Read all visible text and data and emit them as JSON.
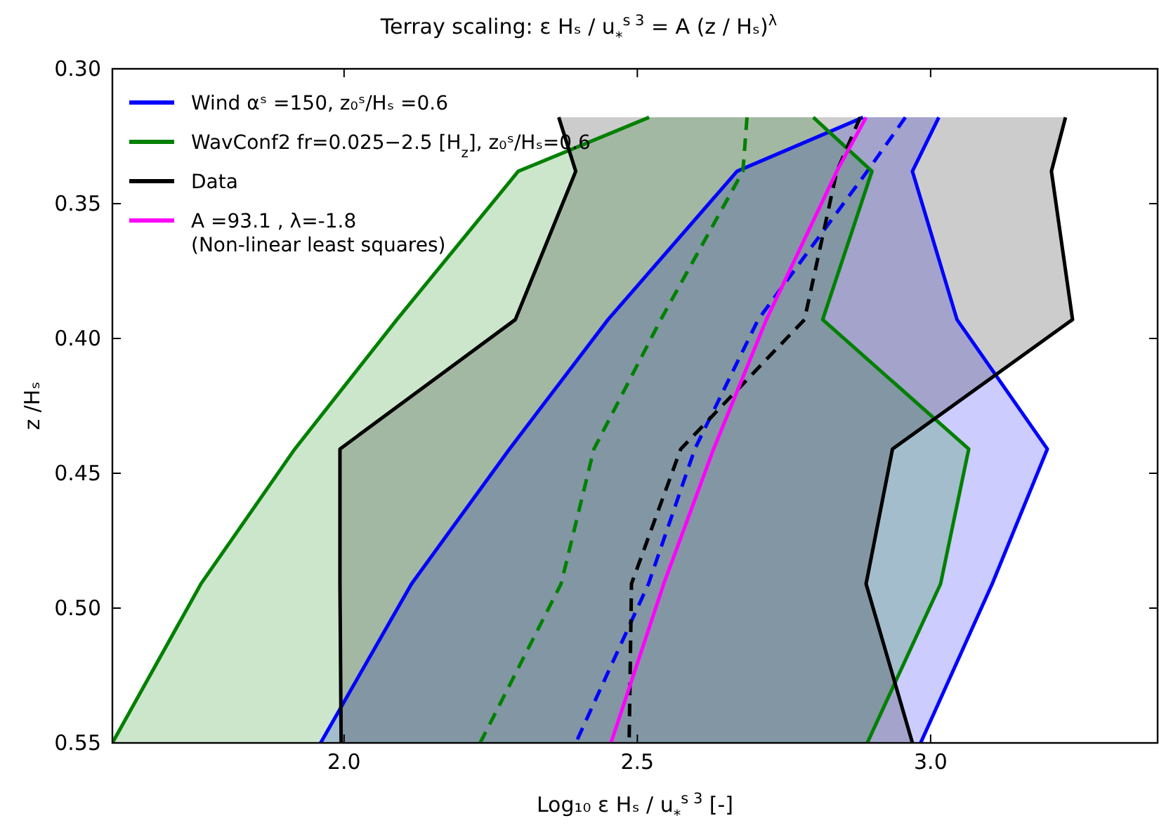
{
  "chart_data": {
    "type": "line",
    "orientation": "horizontal",
    "title": "Terray scaling:  ε Hₛ / u$_{*}$$^{s 3}$ = A  (z / Hₛ)$^{λ}$",
    "xlabel": "Log₁₀ ε Hₛ / u$_{*}$$^{s 3}$ [-]",
    "ylabel": "z /Hₛ",
    "x": [
      0.318,
      0.338,
      0.393,
      0.441,
      0.491,
      0.55
    ],
    "xlim": [
      1.605,
      3.387
    ],
    "xticks": [
      {
        "value": 2,
        "label": "2.0"
      },
      {
        "value": 2.5,
        "label": "2.5"
      },
      {
        "value": 3,
        "label": "3.0"
      }
    ],
    "ylim": [
      0.55,
      0.3
    ],
    "yticks": [
      {
        "value": 0.3,
        "label": "0.30"
      },
      {
        "value": 0.35,
        "label": "0.35"
      },
      {
        "value": 0.4,
        "label": "0.40"
      },
      {
        "value": 0.45,
        "label": "0.45"
      },
      {
        "value": 0.5,
        "label": "0.50"
      },
      {
        "value": 0.55,
        "label": "0.55"
      }
    ],
    "grid": false,
    "legend": "top left",
    "series": [
      {
        "name": "Wind  αˢ =150, z₀ˢ/Hₛ =0.6",
        "color": "#0000ff",
        "line_style": "solid",
        "values": [
          2.885,
          2.67,
          2.45,
          2.282,
          2.115,
          1.96
        ]
      },
      {
        "color": "#0000ff",
        "line_style": "solid",
        "values": [
          3.014,
          2.969,
          3.045,
          3.199,
          3.105,
          2.983
        ]
      },
      {
        "color": "#0000ff",
        "line_style": "dashed",
        "values": [
          2.957,
          2.892,
          2.706,
          2.598,
          2.519,
          2.395
        ],
        "lower": [
          2.885,
          2.67,
          2.45,
          2.282,
          2.115,
          1.96
        ],
        "upper": [
          3.014,
          2.969,
          3.045,
          3.199,
          3.105,
          2.983
        ]
      },
      {
        "name": "WavConf2 fr=0.025−2.5 [H$_{z}$], z₀ˢ/Hₛ=0.6",
        "color": "#008000",
        "line_style": "solid",
        "values": [
          2.52,
          2.297,
          2.09,
          1.916,
          1.756,
          1.605
        ]
      },
      {
        "color": "#008000",
        "line_style": "solid",
        "values": [
          2.8,
          2.9,
          2.816,
          3.065,
          3.017,
          2.892
        ]
      },
      {
        "color": "#008000",
        "line_style": "dashed",
        "values": [
          2.687,
          2.68,
          2.54,
          2.426,
          2.37,
          2.232
        ],
        "lower": [
          2.52,
          2.297,
          2.09,
          1.916,
          1.756,
          1.605
        ],
        "upper": [
          2.8,
          2.9,
          2.816,
          3.065,
          3.017,
          2.892
        ]
      },
      {
        "name": "Data",
        "color": "#000000",
        "line_style": "solid",
        "values": [
          2.366,
          2.395,
          2.292,
          1.993,
          1.993,
          1.995
        ]
      },
      {
        "color": "#000000",
        "line_style": "solid",
        "values": [
          3.23,
          3.206,
          3.242,
          2.935,
          2.89,
          2.969
        ]
      },
      {
        "color": "#000000",
        "line_style": "dashed",
        "values": [
          2.88,
          2.84,
          2.785,
          2.574,
          2.49,
          2.486
        ],
        "lower": [
          2.366,
          2.395,
          2.292,
          1.993,
          1.993,
          1.995
        ],
        "upper": [
          3.23,
          3.206,
          3.242,
          2.935,
          2.89,
          2.969
        ]
      },
      {
        "name": "A =93.1 ,  λ=-1.8\n(Non-linear least squares)",
        "color": "#ff00ff",
        "line_style": "solid",
        "values": [
          2.89,
          2.84,
          2.72,
          2.63,
          2.545,
          2.455
        ]
      }
    ]
  }
}
